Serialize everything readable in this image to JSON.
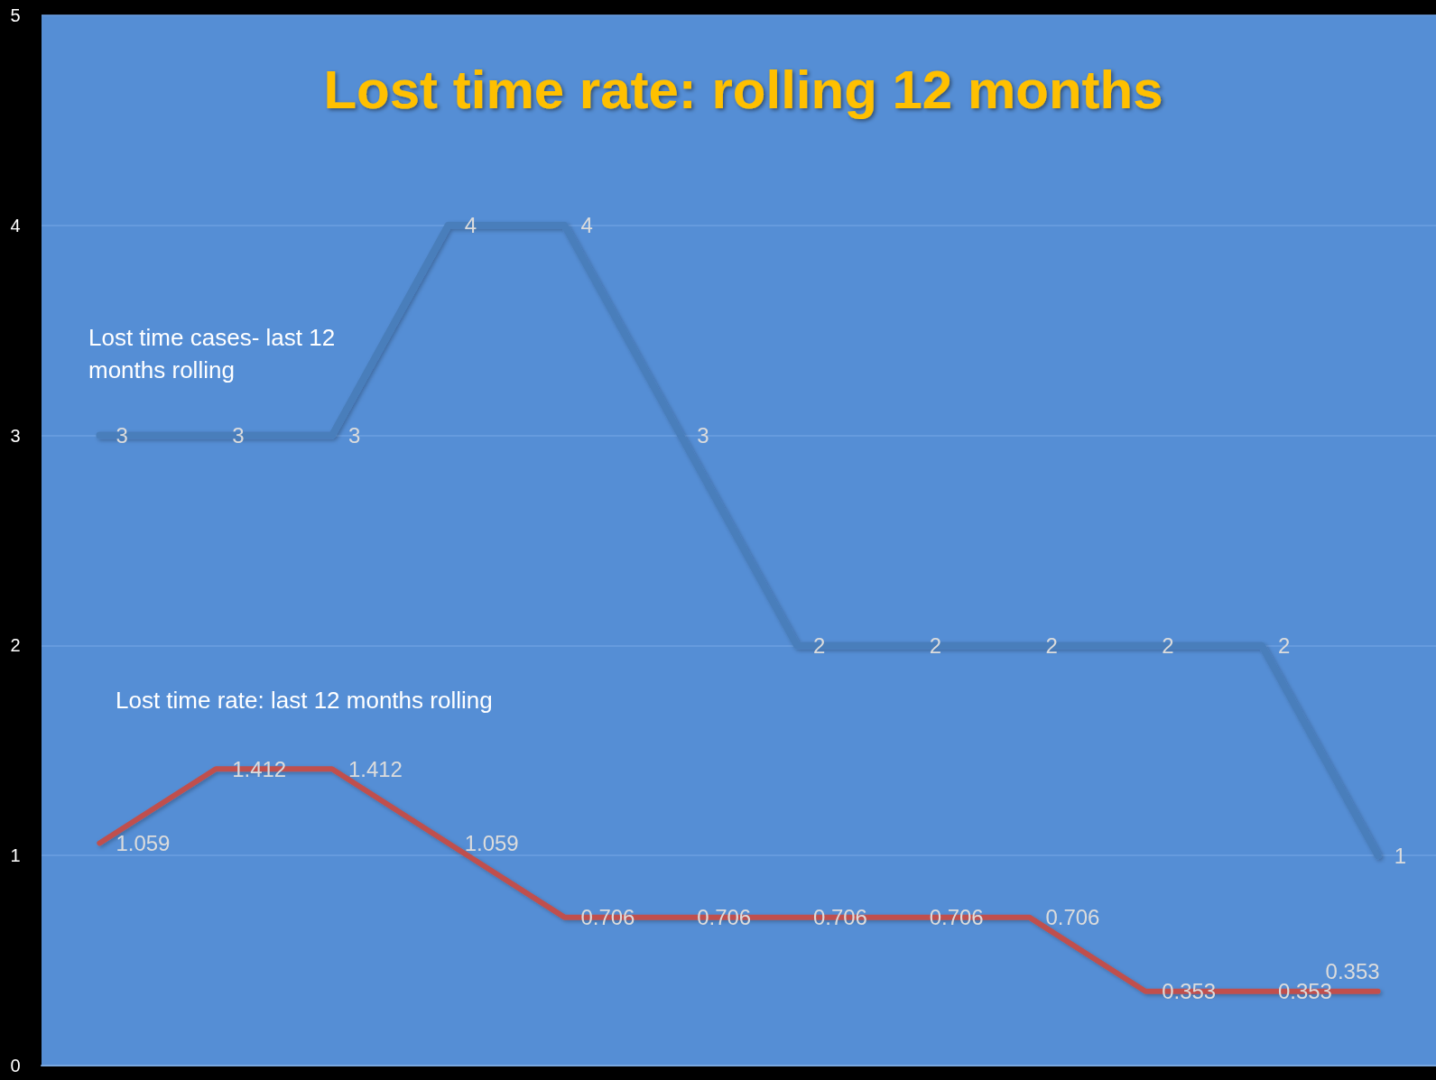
{
  "chart_data": {
    "type": "line",
    "title": "Lost time rate: rolling 12 months",
    "categories": [
      null,
      null,
      null,
      null,
      null,
      null,
      null,
      null,
      null,
      null,
      null,
      null
    ],
    "series": [
      {
        "name": "Lost time cases- last 12 months rolling",
        "color": "#4a7ebb",
        "values": [
          3,
          3,
          3,
          4,
          4,
          3,
          2,
          2,
          2,
          2,
          2,
          1
        ]
      },
      {
        "name": "Lost time rate: last 12 months rolling",
        "color": "#c0504d",
        "values": [
          1.059,
          1.412,
          1.412,
          1.059,
          0.706,
          0.706,
          0.706,
          0.706,
          0.706,
          0.353,
          0.353,
          0.353
        ]
      }
    ],
    "ylim": [
      0,
      5
    ],
    "yticks": [
      0,
      1,
      2,
      3,
      4,
      5
    ],
    "grid": "y",
    "tick_labels": "y",
    "data_labels": true,
    "marker": "none",
    "line_style": "solid"
  }
}
